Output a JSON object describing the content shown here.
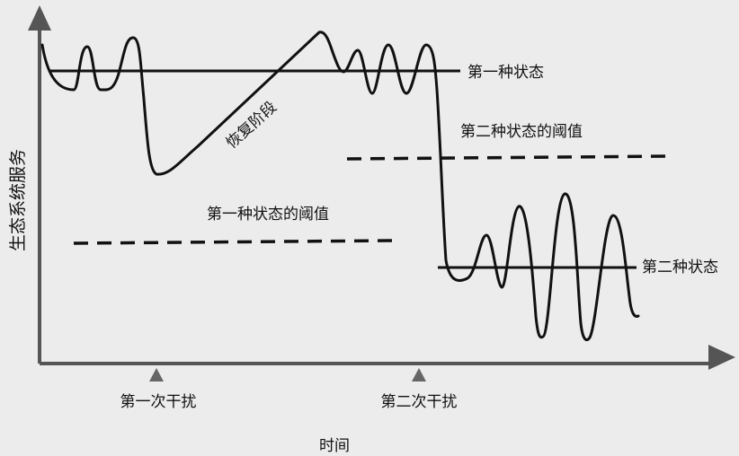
{
  "diagram": {
    "y_axis_label": "生态系统服务",
    "x_axis_label": "时间",
    "state1_label": "第一种状态",
    "state2_label": "第二种状态",
    "threshold1_label": "第一种状态的阈值",
    "threshold2_label": "第二种状态的阈值",
    "recovery_label": "恢复阶段",
    "disturbance1_label": "第一次干扰",
    "disturbance2_label": "第二次干扰"
  },
  "colors": {
    "background": "#ececec",
    "ink": "#111111",
    "axis": "#555555",
    "marker": "#666666"
  }
}
